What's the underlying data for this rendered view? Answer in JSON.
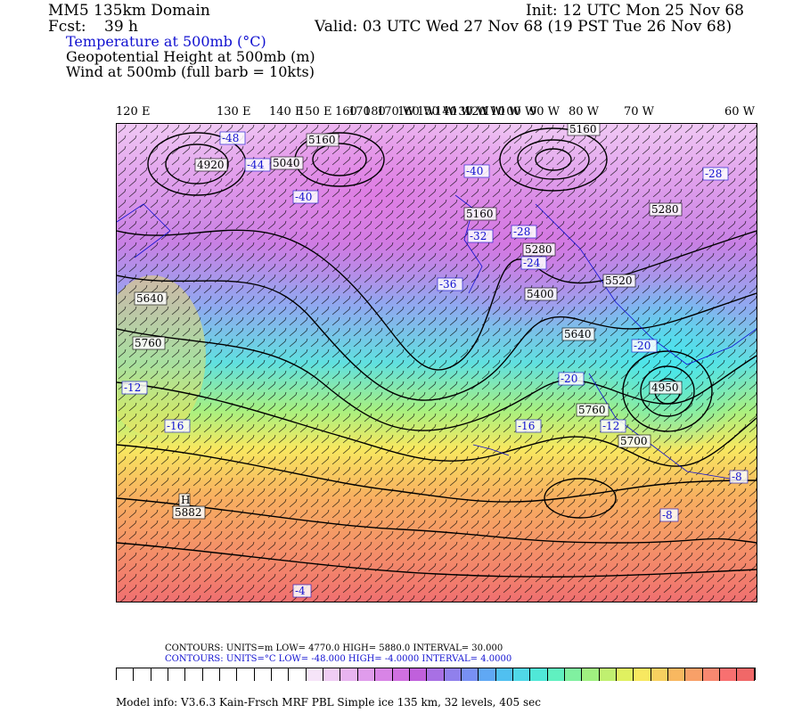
{
  "header": {
    "domain": "MM5 135km Domain",
    "fcst_label": "Fcst:",
    "fcst_value": "39 h",
    "init": "Init: 12 UTC Mon 25 Nov 68",
    "valid": "Valid: 03 UTC Wed 27 Nov 68 (19 PST Tue 26 Nov 68)",
    "field1": "Temperature at 500mb (°C)",
    "field2": "Geopotential Height at 500mb (m)",
    "field3": "Wind at 500mb (full barb = 10kts)"
  },
  "lon_labels": [
    "120 E",
    "130 E",
    "140 E",
    "150 E",
    "160",
    "170",
    "180",
    "170 W",
    "160 W",
    "150 W",
    "140 W",
    "130 W",
    "120 W",
    "110 W",
    "100 W",
    "90 W",
    "80 W",
    "70 W",
    "60 W"
  ],
  "map_labels": {
    "heights": [
      "5160",
      "5040",
      "4920",
      "5160",
      "5280",
      "5400",
      "5640",
      "5760",
      "5520",
      "5640",
      "5760",
      "5700",
      "5280",
      "5160",
      "4950",
      "5882",
      "H"
    ],
    "temps": [
      "-48",
      "-44",
      "-40",
      "-40",
      "-36",
      "-32",
      "-28",
      "-24",
      "-20",
      "-16",
      "-12",
      "-12",
      "-8",
      "-8",
      "-4",
      "-16",
      "-28",
      "-20"
    ]
  },
  "colors": {
    "background": "#ffffff",
    "accent_blue": "#1010d0",
    "colorbar": [
      "#ffffff",
      "#ffffff",
      "#ffffff",
      "#ffffff",
      "#ffffff",
      "#ffffff",
      "#ffffff",
      "#ffffff",
      "#ffffff",
      "#ffffff",
      "#ffffff",
      "#f6e4f8",
      "#f0cdf4",
      "#e8b4f0",
      "#e09cec",
      "#d884e6",
      "#d070e0",
      "#c060dc",
      "#a870e4",
      "#9080ec",
      "#7890f4",
      "#60a8f4",
      "#50c0f0",
      "#50d8e8",
      "#50e8d8",
      "#60f0c0",
      "#80f0a0",
      "#a0f080",
      "#c0f070",
      "#e0f060",
      "#f8e860",
      "#f8d060",
      "#f8b860",
      "#f8a068",
      "#f88870",
      "#f87070",
      "#f06868"
    ]
  },
  "footer": {
    "contours_height": "CONTOURS:  UNITS=m  LOW=  4770.0        HIGH=  5880.0        INTERVAL=   30.000",
    "contours_temp": "CONTOURS:  UNITS=°C  LOW= -48.000        HIGH= -4.0000        INTERVAL=   4.0000",
    "model_info": "Model info: V3.6.3 Kain-Frsch MRF PBL     Simple ice  135 km,  32 levels,  405 sec"
  }
}
